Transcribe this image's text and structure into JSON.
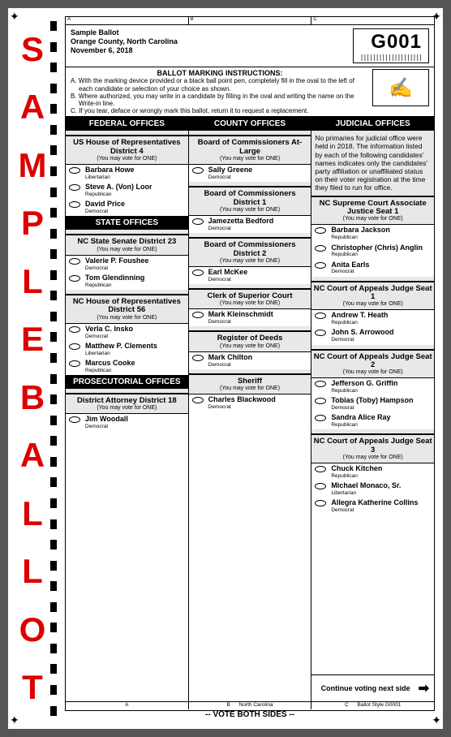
{
  "header": {
    "line1": "Sample Ballot",
    "line2": "Orange County, North Carolina",
    "line3": "November 6, 2018",
    "code": "G001",
    "barcode": "||||||||||||||||||||"
  },
  "instructions": {
    "title": "BALLOT MARKING INSTRUCTIONS:",
    "a": "A. With the marking device provided or a black ball point pen, completely fill in the oval to the left of each candidate or selection of your choice as shown.",
    "b": "B. Where authorized, you may write in a candidate by filling in the oval and writing the name on the Write-in line.",
    "c": "C. If you tear, deface or wrongly mark this ballot, return it to request a replacement."
  },
  "col_letters": {
    "a": "A",
    "b": "B",
    "c": "C"
  },
  "sections": {
    "federal": "FEDERAL OFFICES",
    "state": "STATE OFFICES",
    "prosecutorial": "PROSECUTORIAL OFFICES",
    "county": "COUNTY OFFICES",
    "judicial": "JUDICIAL OFFICES"
  },
  "vote_one": "(You may vote for ONE)",
  "races": {
    "us_house": {
      "title": "US House of Representatives District 4",
      "c1n": "Barbara Howe",
      "c1p": "Libertarian",
      "c2n": "Steve A. (Von) Loor",
      "c2p": "Republican",
      "c3n": "David Price",
      "c3p": "Democrat"
    },
    "nc_senate": {
      "title": "NC State Senate District 23",
      "c1n": "Valerie P. Foushee",
      "c1p": "Democrat",
      "c2n": "Tom Glendinning",
      "c2p": "Republican"
    },
    "nc_house": {
      "title": "NC House of Representatives District 56",
      "c1n": "Verla C. Insko",
      "c1p": "Democrat",
      "c2n": "Matthew P. Clements",
      "c2p": "Libertarian",
      "c3n": "Marcus Cooke",
      "c3p": "Republican"
    },
    "da": {
      "title": "District Attorney District 18",
      "c1n": "Jim Woodall",
      "c1p": "Democrat"
    },
    "boc_al": {
      "title": "Board of Commissioners At-Large",
      "c1n": "Sally Greene",
      "c1p": "Democrat"
    },
    "boc_d1": {
      "title": "Board of Commissioners District 1",
      "c1n": "Jamezetta Bedford",
      "c1p": "Democrat"
    },
    "boc_d2": {
      "title": "Board of Commissioners District 2",
      "c1n": "Earl McKee",
      "c1p": "Democrat"
    },
    "clerk": {
      "title": "Clerk of Superior Court",
      "c1n": "Mark Kleinschmidt",
      "c1p": "Democrat"
    },
    "deeds": {
      "title": "Register of Deeds",
      "c1n": "Mark Chilton",
      "c1p": "Democrat"
    },
    "sheriff": {
      "title": "Sheriff",
      "c1n": "Charles Blackwood",
      "c1p": "Democrat"
    },
    "judicial_note": "No primaries for judicial office were held in 2018. The information listed by each of the following candidates' names indicates only the candidates' party affiliation or unaffiliated status on their voter registration at the time they filed to run for office.",
    "sc": {
      "title": "NC Supreme Court Associate Justice Seat 1",
      "c1n": "Barbara Jackson",
      "c1p": "Republican",
      "c2n": "Christopher (Chris) Anglin",
      "c2p": "Republican",
      "c3n": "Anita Earls",
      "c3p": "Democrat"
    },
    "coa1": {
      "title": "NC Court of Appeals Judge Seat 1",
      "c1n": "Andrew T. Heath",
      "c1p": "Republican",
      "c2n": "John S. Arrowood",
      "c2p": "Democrat"
    },
    "coa2": {
      "title": "NC Court of Appeals Judge Seat 2",
      "c1n": "Jefferson G. Griffin",
      "c1p": "Republican",
      "c2n": "Tobias (Toby) Hampson",
      "c2p": "Democrat",
      "c3n": "Sandra Alice Ray",
      "c3p": "Republican"
    },
    "coa3": {
      "title": "NC Court of Appeals Judge Seat 3",
      "c1n": "Chuck Kitchen",
      "c1p": "Republican",
      "c2n": "Michael Monaco, Sr.",
      "c2p": "Libertarian",
      "c3n": "Allegra Katherine Collins",
      "c3p": "Democrat"
    }
  },
  "continue": "Continue voting next side",
  "footer": {
    "a": "A",
    "b": "B",
    "mid": "North Carolina",
    "c": "C",
    "style": "Ballot Style  G0001"
  },
  "vote_both": "-- VOTE BOTH SIDES --",
  "sample": [
    "S",
    "A",
    "M",
    "P",
    "L",
    "E",
    "B",
    "A",
    "L",
    "L",
    "O",
    "T"
  ]
}
